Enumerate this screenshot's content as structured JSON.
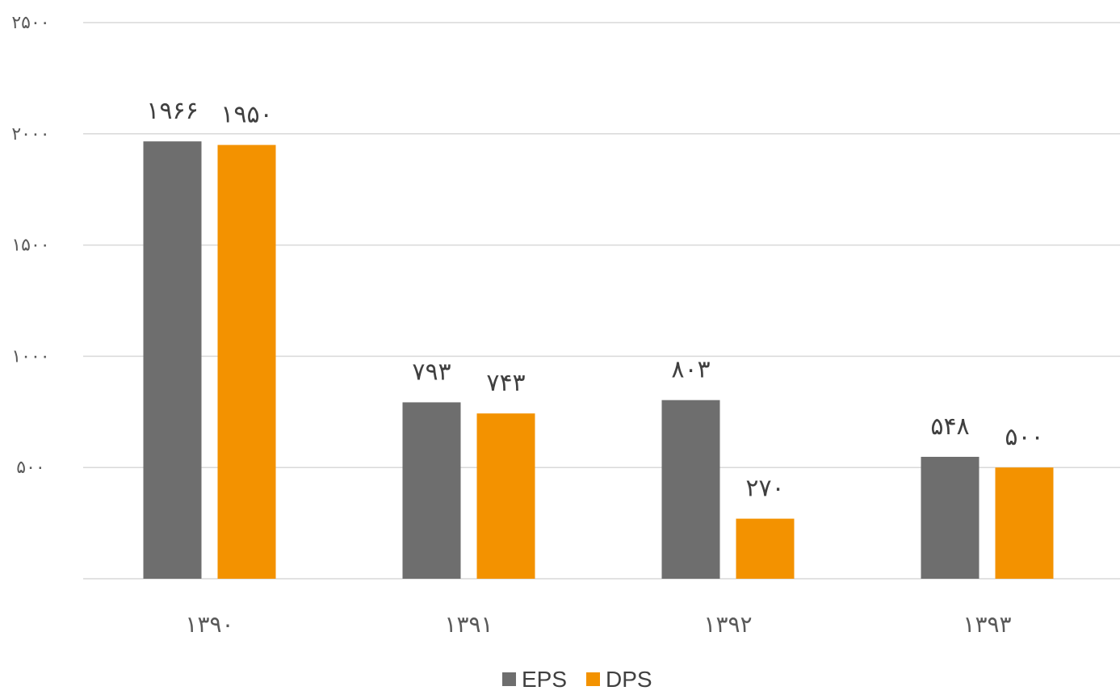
{
  "chart_data": {
    "type": "bar",
    "categories": [
      "۱۳۹۰",
      "۱۳۹۱",
      "۱۳۹۲",
      "۱۳۹۳"
    ],
    "series": [
      {
        "name": "EPS",
        "color": "#6e6e6e",
        "values": [
          1966,
          793,
          803,
          548
        ],
        "labels": [
          "۱۹۶۶",
          "۷۹۳",
          "۸۰۳",
          "۵۴۸"
        ]
      },
      {
        "name": "DPS",
        "color": "#f39200",
        "values": [
          1950,
          743,
          270,
          500
        ],
        "labels": [
          "۱۹۵۰",
          "۷۴۳",
          "۲۷۰",
          "۵۰۰"
        ]
      }
    ],
    "ylim": [
      0,
      2500
    ],
    "yticks": [
      0,
      500,
      1000,
      1500,
      2000,
      2500
    ],
    "ytick_labels": [
      "",
      "۵۰۰",
      "۱۰۰۰",
      "۱۵۰۰",
      "۲۰۰۰",
      "۲۵۰۰"
    ],
    "grid": true,
    "legend": "bottom-center",
    "title": "",
    "xlabel": "",
    "ylabel": ""
  }
}
